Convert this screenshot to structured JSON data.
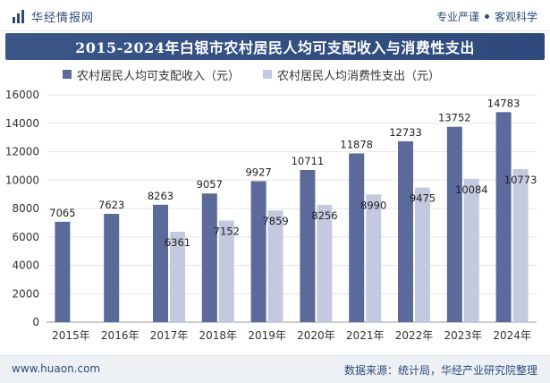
{
  "header": {
    "brand": "华经情报网",
    "tag_1": "专业严谨",
    "tag_2": "客观科学"
  },
  "footer": {
    "url": "www.huaon.com",
    "source": "数据来源：统计局，华经产业研究院整理"
  },
  "colors": {
    "series_1": "#5b6a9a",
    "series_2": "#c3c9de",
    "title_band": "#34508a",
    "grid": "#e5e5e5"
  },
  "chart_data": {
    "type": "bar",
    "title": "2015-2024年白银市农村居民人均可支配收入与消费性支出",
    "categories": [
      "2015年",
      "2016年",
      "2017年",
      "2018年",
      "2019年",
      "2020年",
      "2021年",
      "2022年",
      "2023年",
      "2024年"
    ],
    "series": [
      {
        "name": "农村居民人均可支配收入（元）",
        "values": [
          7065,
          7623,
          8263,
          9057,
          9927,
          10711,
          11878,
          12733,
          13752,
          14783
        ]
      },
      {
        "name": "农村居民人均消费性支出（元）",
        "values": [
          null,
          null,
          6361,
          7152,
          7859,
          8256,
          8990,
          9475,
          10084,
          10773
        ]
      }
    ],
    "ylim": [
      0,
      16000
    ],
    "yticks": [
      "0",
      "2000",
      "4000",
      "6000",
      "8000",
      "10000",
      "12000",
      "14000",
      "16000"
    ],
    "grid": true,
    "legend": "top-left"
  }
}
